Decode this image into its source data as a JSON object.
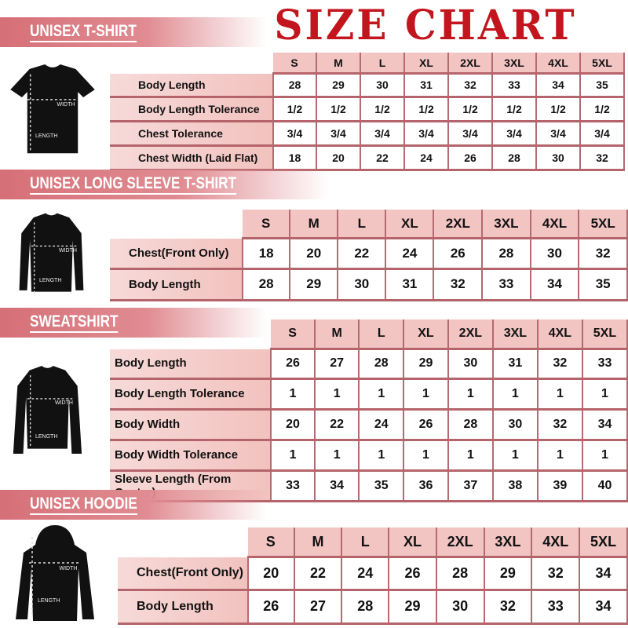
{
  "title": "SIZE CHART",
  "sizes": [
    "S",
    "M",
    "L",
    "XL",
    "2XL",
    "3XL",
    "4XL",
    "5XL"
  ],
  "figure_labels": {
    "width": "WIDTH",
    "length": "LENGTH"
  },
  "colors": {
    "title": "#c3151d",
    "banner": "#d66f77",
    "header_cell": "#f2c4c2",
    "border": "#b5646b"
  },
  "sections": [
    {
      "name": "UNISEX T-SHIRT",
      "garment_icon": "t-shirt",
      "rows": [
        {
          "label": "Body Length",
          "values": [
            "28",
            "29",
            "30",
            "31",
            "32",
            "33",
            "34",
            "35"
          ]
        },
        {
          "label": "Body Length Tolerance",
          "values": [
            "1/2",
            "1/2",
            "1/2",
            "1/2",
            "1/2",
            "1/2",
            "1/2",
            "1/2"
          ]
        },
        {
          "label": "Chest Tolerance",
          "values": [
            "3/4",
            "3/4",
            "3/4",
            "3/4",
            "3/4",
            "3/4",
            "3/4",
            "3/4"
          ]
        },
        {
          "label": "Chest Width (Laid Flat)",
          "values": [
            "18",
            "20",
            "22",
            "24",
            "26",
            "28",
            "30",
            "32"
          ]
        }
      ]
    },
    {
      "name": "UNISEX LONG SLEEVE T-SHIRT",
      "garment_icon": "long-sleeve-shirt",
      "rows": [
        {
          "label": "Chest(Front Only)",
          "values": [
            "18",
            "20",
            "22",
            "24",
            "26",
            "28",
            "30",
            "32"
          ]
        },
        {
          "label": "Body Length",
          "values": [
            "28",
            "29",
            "30",
            "31",
            "32",
            "33",
            "34",
            "35"
          ]
        }
      ]
    },
    {
      "name": "SWEATSHIRT",
      "garment_icon": "sweatshirt",
      "rows": [
        {
          "label": "Body Length",
          "values": [
            "26",
            "27",
            "28",
            "29",
            "30",
            "31",
            "32",
            "33"
          ]
        },
        {
          "label": "Body Length Tolerance",
          "values": [
            "1",
            "1",
            "1",
            "1",
            "1",
            "1",
            "1",
            "1"
          ]
        },
        {
          "label": "Body Width",
          "values": [
            "20",
            "22",
            "24",
            "26",
            "28",
            "30",
            "32",
            "34"
          ]
        },
        {
          "label": "Body Width Tolerance",
          "values": [
            "1",
            "1",
            "1",
            "1",
            "1",
            "1",
            "1",
            "1"
          ]
        },
        {
          "label": "Sleeve Length (From Center)",
          "values": [
            "33",
            "34",
            "35",
            "36",
            "37",
            "38",
            "39",
            "40"
          ]
        }
      ]
    },
    {
      "name": "UNISEX HOODIE",
      "garment_icon": "hoodie",
      "rows": [
        {
          "label": "Chest(Front Only)",
          "values": [
            "20",
            "22",
            "24",
            "26",
            "28",
            "29",
            "32",
            "34"
          ]
        },
        {
          "label": "Body Length",
          "values": [
            "26",
            "27",
            "28",
            "29",
            "30",
            "32",
            "33",
            "34"
          ]
        }
      ]
    }
  ]
}
